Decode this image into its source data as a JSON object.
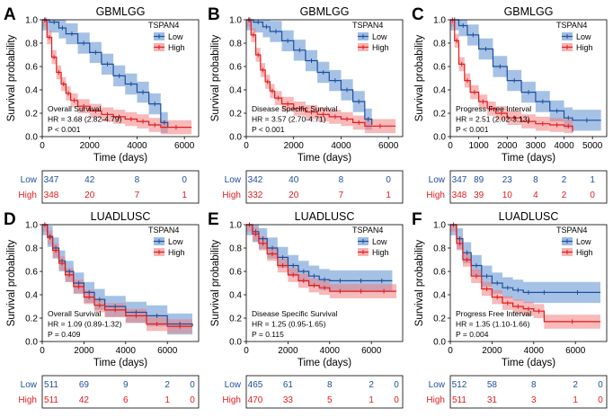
{
  "colors": {
    "low": "#1f4e9c",
    "high": "#e41a1c",
    "low_fill": "#5b8fd1",
    "high_fill": "#f08080"
  },
  "legend": {
    "title": "TSPAN4",
    "low": "Low",
    "high": "High"
  },
  "table_labels": {
    "low": "Low",
    "high": "High"
  },
  "chart_data": [
    {
      "type": "line",
      "panel": "A",
      "title": "GBMLGG",
      "xlabel": "Time (days)",
      "ylabel": "Survival probability",
      "xlim": [
        0,
        6600
      ],
      "ylim": [
        0,
        1.0
      ],
      "xticks": [
        0,
        2000,
        4000,
        6000
      ],
      "yticks": [
        0,
        0.2,
        0.4,
        0.6,
        0.8,
        1.0
      ],
      "ytick_labels": [
        "0.0",
        "0.2",
        "0.4",
        "0.6",
        "0.8",
        "1.0"
      ],
      "annotation": [
        "Overall Survival",
        "HR = 3.68 (2.82-4.79)",
        "P < 0.001"
      ],
      "series": [
        {
          "name": "Low",
          "x": [
            0,
            300,
            700,
            1000,
            1500,
            2000,
            2500,
            3000,
            3500,
            4000,
            4500,
            5000,
            5300
          ],
          "y": [
            1.0,
            0.98,
            0.93,
            0.88,
            0.8,
            0.72,
            0.62,
            0.52,
            0.45,
            0.38,
            0.28,
            0.12,
            0.08
          ]
        },
        {
          "name": "High",
          "x": [
            0,
            200,
            400,
            600,
            800,
            1000,
            1200,
            1500,
            2000,
            2500,
            3000,
            3500,
            4000,
            4500,
            5000,
            6300
          ],
          "y": [
            1.0,
            0.85,
            0.68,
            0.55,
            0.45,
            0.37,
            0.31,
            0.26,
            0.22,
            0.19,
            0.17,
            0.15,
            0.13,
            0.1,
            0.08,
            0.08
          ]
        }
      ],
      "risk_xticks": [
        0,
        2000,
        4000,
        6000
      ],
      "risk_table": {
        "low": [
          "347",
          "42",
          "8",
          "0"
        ],
        "high": [
          "348",
          "20",
          "7",
          "1"
        ]
      }
    },
    {
      "type": "line",
      "panel": "B",
      "title": "GBMLGG",
      "xlabel": "Time (days)",
      "ylabel": "Survival probability",
      "xlim": [
        0,
        6600
      ],
      "ylim": [
        0,
        1.0
      ],
      "xticks": [
        0,
        2000,
        4000,
        6000
      ],
      "yticks": [
        0,
        0.2,
        0.4,
        0.6,
        0.8,
        1.0
      ],
      "ytick_labels": [
        "0.0",
        "0.2",
        "0.4",
        "0.6",
        "0.8",
        "1.0"
      ],
      "annotation": [
        "Disease Specific Survival",
        "HR = 3.57 (2.70-4.71)",
        "P < 0.001"
      ],
      "series": [
        {
          "name": "Low",
          "x": [
            0,
            300,
            700,
            1000,
            1500,
            2000,
            2500,
            3000,
            3500,
            4000,
            4500,
            5000,
            5300
          ],
          "y": [
            1.0,
            0.98,
            0.94,
            0.9,
            0.82,
            0.74,
            0.65,
            0.55,
            0.48,
            0.4,
            0.3,
            0.15,
            0.1
          ]
        },
        {
          "name": "High",
          "x": [
            0,
            200,
            400,
            600,
            800,
            1000,
            1200,
            1500,
            2000,
            2500,
            3000,
            3500,
            4000,
            4500,
            5000,
            6300
          ],
          "y": [
            1.0,
            0.87,
            0.7,
            0.57,
            0.47,
            0.39,
            0.33,
            0.28,
            0.24,
            0.21,
            0.19,
            0.17,
            0.15,
            0.12,
            0.09,
            0.09
          ]
        }
      ],
      "risk_xticks": [
        0,
        2000,
        4000,
        6000
      ],
      "risk_table": {
        "low": [
          "342",
          "40",
          "8",
          "0"
        ],
        "high": [
          "332",
          "20",
          "7",
          "1"
        ]
      }
    },
    {
      "type": "line",
      "panel": "C",
      "title": "GBMLGG",
      "xlabel": "Time (days)",
      "ylabel": "Survival probability",
      "xlim": [
        0,
        5500
      ],
      "ylim": [
        0,
        1.0
      ],
      "xticks": [
        0,
        1000,
        2000,
        3000,
        4000,
        5000
      ],
      "yticks": [
        0,
        0.2,
        0.4,
        0.6,
        0.8,
        1.0
      ],
      "ytick_labels": [
        "0.0",
        "0.2",
        "0.4",
        "0.6",
        "0.8",
        "1.0"
      ],
      "annotation": [
        "Progress Free Interval",
        "HR = 2.51 (2.02-3.13)",
        "P < 0.001"
      ],
      "series": [
        {
          "name": "Low",
          "x": [
            0,
            300,
            600,
            1000,
            1500,
            2000,
            2500,
            3000,
            3500,
            4000,
            4300,
            5300
          ],
          "y": [
            1.0,
            0.95,
            0.87,
            0.75,
            0.6,
            0.48,
            0.38,
            0.3,
            0.22,
            0.16,
            0.14,
            0.14
          ]
        },
        {
          "name": "High",
          "x": [
            0,
            150,
            300,
            500,
            700,
            1000,
            1300,
            1600,
            2000,
            2500,
            3000,
            3500,
            4000,
            4300
          ],
          "y": [
            1.0,
            0.82,
            0.62,
            0.48,
            0.38,
            0.3,
            0.24,
            0.2,
            0.16,
            0.13,
            0.11,
            0.1,
            0.09,
            0.04
          ]
        }
      ],
      "risk_xticks": [
        0,
        1000,
        2000,
        3000,
        4000,
        5000
      ],
      "risk_table": {
        "low": [
          "347",
          "89",
          "23",
          "8",
          "2",
          "1"
        ],
        "high": [
          "348",
          "39",
          "10",
          "4",
          "2",
          "0"
        ]
      }
    },
    {
      "type": "line",
      "panel": "D",
      "title": "LUADLUSC",
      "xlabel": "Time (days)",
      "ylabel": "Survival probability",
      "xlim": [
        0,
        7500
      ],
      "ylim": [
        0,
        1.0
      ],
      "xticks": [
        0,
        2000,
        4000,
        6000
      ],
      "yticks": [
        0,
        0.2,
        0.4,
        0.6,
        0.8,
        1.0
      ],
      "ytick_labels": [
        "0.0",
        "0.2",
        "0.4",
        "0.6",
        "0.8",
        "1.0"
      ],
      "annotation": [
        "Overall Survival",
        "HR = 1.09 (0.89-1.32)",
        "P = 0.409"
      ],
      "series": [
        {
          "name": "Low",
          "x": [
            0,
            250,
            500,
            800,
            1100,
            1500,
            2000,
            2500,
            3000,
            4000,
            5000,
            6000,
            7200
          ],
          "y": [
            1.0,
            0.9,
            0.8,
            0.69,
            0.6,
            0.5,
            0.42,
            0.36,
            0.3,
            0.25,
            0.22,
            0.15,
            0.13
          ]
        },
        {
          "name": "High",
          "x": [
            0,
            250,
            500,
            800,
            1100,
            1500,
            2000,
            2500,
            3000,
            4000,
            5000,
            6000,
            7200
          ],
          "y": [
            1.0,
            0.89,
            0.78,
            0.67,
            0.57,
            0.47,
            0.38,
            0.31,
            0.27,
            0.22,
            0.15,
            0.13,
            0.13
          ]
        }
      ],
      "risk_xticks": [
        0,
        2000,
        4000,
        6000,
        7200
      ],
      "risk_table": {
        "low": [
          "511",
          "69",
          "9",
          "2",
          "0"
        ],
        "high": [
          "511",
          "42",
          "6",
          "1",
          "0"
        ]
      }
    },
    {
      "type": "line",
      "panel": "E",
      "title": "LUADLUSC",
      "xlabel": "Time (days)",
      "ylabel": "Survival probability",
      "xlim": [
        0,
        7500
      ],
      "ylim": [
        0,
        1.0
      ],
      "xticks": [
        0,
        2000,
        4000,
        6000
      ],
      "yticks": [
        0,
        0.2,
        0.4,
        0.6,
        0.8,
        1.0
      ],
      "ytick_labels": [
        "0.0",
        "0.2",
        "0.4",
        "0.6",
        "0.8",
        "1.0"
      ],
      "annotation": [
        "Disease Specific Survival",
        "HR = 1.25 (0.95-1.65)",
        "P = 0.115"
      ],
      "series": [
        {
          "name": "Low",
          "x": [
            0,
            300,
            600,
            1000,
            1500,
            2000,
            2500,
            3000,
            3500,
            4000,
            5000,
            6000,
            7000
          ],
          "y": [
            1.0,
            0.94,
            0.88,
            0.8,
            0.72,
            0.65,
            0.6,
            0.56,
            0.53,
            0.52,
            0.52,
            0.52,
            0.52
          ]
        },
        {
          "name": "High",
          "x": [
            0,
            300,
            600,
            1000,
            1500,
            2000,
            2500,
            3000,
            3500,
            4000,
            5000,
            6000,
            7200
          ],
          "y": [
            1.0,
            0.92,
            0.84,
            0.75,
            0.65,
            0.57,
            0.52,
            0.48,
            0.46,
            0.43,
            0.43,
            0.43,
            0.43
          ]
        }
      ],
      "risk_xticks": [
        0,
        2000,
        4000,
        6000,
        7200
      ],
      "risk_table": {
        "low": [
          "465",
          "61",
          "8",
          "2",
          "0"
        ],
        "high": [
          "470",
          "33",
          "5",
          "1",
          "0"
        ]
      }
    },
    {
      "type": "line",
      "panel": "F",
      "title": "LUADLUSC",
      "xlabel": "Time (days)",
      "ylabel": "Survival probability",
      "xlim": [
        0,
        7500
      ],
      "ylim": [
        0,
        1.0
      ],
      "xticks": [
        0,
        2000,
        4000,
        6000
      ],
      "yticks": [
        0,
        0.2,
        0.4,
        0.6,
        0.8,
        1.0
      ],
      "ytick_labels": [
        "0.0",
        "0.2",
        "0.4",
        "0.6",
        "0.8",
        "1.0"
      ],
      "annotation": [
        "Progress Free Interval",
        "HR = 1.35 (1.10-1.66)",
        "P = 0.004"
      ],
      "series": [
        {
          "name": "Low",
          "x": [
            0,
            300,
            600,
            1000,
            1500,
            2000,
            2500,
            3000,
            3500,
            4000,
            5000,
            7200
          ],
          "y": [
            1.0,
            0.88,
            0.76,
            0.65,
            0.56,
            0.5,
            0.46,
            0.44,
            0.42,
            0.42,
            0.42,
            0.42
          ]
        },
        {
          "name": "High",
          "x": [
            0,
            300,
            600,
            1000,
            1500,
            2000,
            2500,
            3000,
            3500,
            4000,
            4500,
            7200
          ],
          "y": [
            1.0,
            0.84,
            0.7,
            0.56,
            0.45,
            0.38,
            0.33,
            0.3,
            0.28,
            0.26,
            0.17,
            0.17
          ]
        }
      ],
      "risk_xticks": [
        0,
        2000,
        4000,
        6000,
        7200
      ],
      "risk_table": {
        "low": [
          "512",
          "58",
          "8",
          "2",
          "0"
        ],
        "high": [
          "511",
          "31",
          "3",
          "1",
          "0"
        ]
      }
    }
  ]
}
